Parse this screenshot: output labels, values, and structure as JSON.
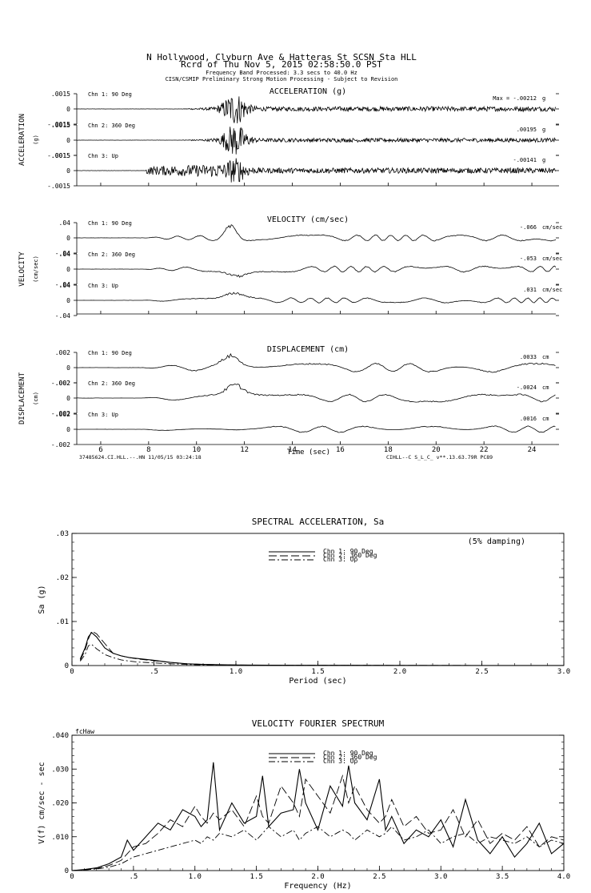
{
  "header": {
    "title": "N Hollywood, Clyburn Ave & Hatteras St    SCSN Sta HLL",
    "record": "Rcrd of Thu Nov  5, 2015 02:58:50.0 PST",
    "band": "Frequency Band Processed: 3.3 secs to 40.0 Hz",
    "notice": "CISN/CSMIP Preliminary Strong Motion Processing - Subject to Revision"
  },
  "timeseries": {
    "panels": [
      {
        "id": "acc",
        "title": "ACCELERATION (g)",
        "side_label": "ACCELERATION",
        "unit_label": "(g)",
        "ticks": [
          ".0015",
          "0",
          "-.0015"
        ],
        "unit": "g",
        "channels": [
          {
            "name": "Chn 1: 90 Deg",
            "max_label": "Max =  -.00212",
            "max_value": -0.00212
          },
          {
            "name": "Chn 2: 360 Deg",
            "max_label": ".00195",
            "max_value": 0.00195
          },
          {
            "name": "Chn 3: Up",
            "max_label": "-.00141",
            "max_value": -0.00141
          }
        ]
      },
      {
        "id": "vel",
        "title": "VELOCITY (cm/sec)",
        "side_label": "VELOCITY",
        "unit_label": "(cm/sec)",
        "ticks": [
          ".04",
          "0",
          "-.04"
        ],
        "unit": "cm/sec",
        "channels": [
          {
            "name": "Chn 1: 90 Deg",
            "max_label": "-.066",
            "max_value": -0.066
          },
          {
            "name": "Chn 2: 360 Deg",
            "max_label": "-.053",
            "max_value": -0.053
          },
          {
            "name": "Chn 3: Up",
            "max_label": ".031",
            "max_value": 0.031
          }
        ]
      },
      {
        "id": "dis",
        "title": "DISPLACEMENT (cm)",
        "side_label": "DISPLACEMENT",
        "unit_label": "(cm)",
        "ticks": [
          ".002",
          "0",
          "-.002"
        ],
        "unit": "cm",
        "channels": [
          {
            "name": "Chn 1: 90 Deg",
            "max_label": ".0033",
            "max_value": 0.0033
          },
          {
            "name": "Chn 2: 360 Deg",
            "max_label": "-.0024",
            "max_value": -0.0024
          },
          {
            "name": "Chn 3: Up",
            "max_label": ".0016",
            "max_value": 0.0016
          }
        ]
      }
    ],
    "x_ticks": [
      "6",
      "8",
      "10",
      "12",
      "14",
      "16",
      "18",
      "20",
      "22",
      "24"
    ],
    "xlim": [
      5.0,
      25.0
    ],
    "xlabel": "Time (sec)",
    "footer_left": "37485624.CI.HLL.--.HN 11/05/15 03:24:18",
    "footer_right": "CIHLL--C  S_L_C_  v**.13.63.79R PC89"
  },
  "chart_data": [
    {
      "type": "line",
      "title": "SPECTRAL ACCELERATION, Sa",
      "xlabel": "Period (sec)",
      "ylabel": "Sa (g)",
      "xlim": [
        0,
        3.0
      ],
      "ylim": [
        0,
        0.03
      ],
      "x_ticks": [
        "0",
        ".5",
        "1.0",
        "1.5",
        "2.0",
        "2.5",
        "3.0"
      ],
      "y_ticks": [
        "0",
        ".01",
        ".02",
        ".03"
      ],
      "annotation": "(5% damping)",
      "x": [
        0.05,
        0.08,
        0.1,
        0.12,
        0.15,
        0.2,
        0.25,
        0.3,
        0.35,
        0.4,
        0.5,
        0.6,
        0.7,
        0.8,
        1.0,
        1.2,
        1.5,
        2.0,
        2.5,
        3.0
      ],
      "series": [
        {
          "name": "Chn 1: 90 Deg",
          "dash": "solid",
          "values": [
            0.0015,
            0.004,
            0.0065,
            0.0075,
            0.0065,
            0.004,
            0.0028,
            0.0022,
            0.0018,
            0.0016,
            0.0012,
            0.0007,
            0.0004,
            0.00025,
            0.00012,
            8e-05,
            5e-05,
            3e-05,
            2e-05,
            1e-05
          ]
        },
        {
          "name": "Chn 2: 360 Deg",
          "dash": "long",
          "values": [
            0.0012,
            0.0035,
            0.006,
            0.0078,
            0.0072,
            0.005,
            0.0028,
            0.0022,
            0.0018,
            0.0015,
            0.0011,
            0.0007,
            0.0004,
            0.00025,
            0.00012,
            8e-05,
            5e-05,
            3e-05,
            2e-05,
            1e-05
          ]
        },
        {
          "name": "Chn 3: Up",
          "dash": "dashdot",
          "values": [
            0.001,
            0.0025,
            0.0045,
            0.0048,
            0.0038,
            0.0025,
            0.0018,
            0.0013,
            0.001,
            0.0008,
            0.0006,
            0.0004,
            0.00025,
            0.00015,
            8e-05,
            5e-05,
            3e-05,
            2e-05,
            1e-05,
            1e-05
          ]
        }
      ],
      "legend_position": "top-center"
    },
    {
      "type": "line",
      "title": "VELOCITY FOURIER SPECTRUM",
      "corner_label": "fcHaw",
      "xlabel": "Frequency (Hz)",
      "ylabel": "V(f)   cm/sec - sec",
      "xlim": [
        0,
        4.0
      ],
      "ylim": [
        0,
        0.04
      ],
      "x_ticks": [
        "0",
        ".5",
        "1.0",
        "1.5",
        "2.0",
        "2.5",
        "3.0",
        "3.5",
        "4.0"
      ],
      "y_ticks": [
        "0",
        ".010",
        ".020",
        ".030",
        ".040"
      ],
      "x": [
        0.0,
        0.1,
        0.2,
        0.3,
        0.4,
        0.45,
        0.5,
        0.6,
        0.7,
        0.8,
        0.9,
        1.0,
        1.05,
        1.1,
        1.15,
        1.2,
        1.3,
        1.4,
        1.5,
        1.55,
        1.6,
        1.7,
        1.8,
        1.85,
        1.9,
        2.0,
        2.1,
        2.2,
        2.25,
        2.3,
        2.4,
        2.5,
        2.55,
        2.6,
        2.7,
        2.8,
        2.9,
        3.0,
        3.1,
        3.2,
        3.3,
        3.4,
        3.5,
        3.6,
        3.7,
        3.8,
        3.9,
        4.0
      ],
      "series": [
        {
          "name": "Chn 1: 90 Deg",
          "dash": "solid",
          "values": [
            0,
            0.0003,
            0.0008,
            0.002,
            0.004,
            0.009,
            0.006,
            0.01,
            0.014,
            0.012,
            0.018,
            0.016,
            0.013,
            0.015,
            0.032,
            0.012,
            0.02,
            0.014,
            0.016,
            0.028,
            0.013,
            0.017,
            0.018,
            0.03,
            0.02,
            0.012,
            0.025,
            0.019,
            0.031,
            0.02,
            0.015,
            0.027,
            0.012,
            0.016,
            0.008,
            0.012,
            0.01,
            0.015,
            0.007,
            0.021,
            0.009,
            0.005,
            0.01,
            0.004,
            0.008,
            0.014,
            0.005,
            0.008
          ]
        },
        {
          "name": "Chn 2: 360 Deg",
          "dash": "long",
          "values": [
            0,
            0.0002,
            0.0006,
            0.0015,
            0.003,
            0.005,
            0.007,
            0.008,
            0.011,
            0.015,
            0.013,
            0.019,
            0.016,
            0.014,
            0.017,
            0.015,
            0.018,
            0.013,
            0.022,
            0.016,
            0.014,
            0.025,
            0.02,
            0.016,
            0.027,
            0.022,
            0.017,
            0.028,
            0.02,
            0.025,
            0.018,
            0.014,
            0.016,
            0.021,
            0.013,
            0.016,
            0.011,
            0.012,
            0.018,
            0.01,
            0.015,
            0.008,
            0.011,
            0.009,
            0.013,
            0.007,
            0.01,
            0.009
          ]
        },
        {
          "name": "Chn 3: Up",
          "dash": "dashdot",
          "values": [
            0,
            0.0002,
            0.0005,
            0.001,
            0.002,
            0.003,
            0.004,
            0.005,
            0.006,
            0.007,
            0.008,
            0.009,
            0.008,
            0.01,
            0.009,
            0.011,
            0.01,
            0.012,
            0.009,
            0.011,
            0.013,
            0.01,
            0.012,
            0.009,
            0.011,
            0.013,
            0.01,
            0.012,
            0.011,
            0.009,
            0.012,
            0.01,
            0.011,
            0.013,
            0.009,
            0.01,
            0.012,
            0.008,
            0.01,
            0.011,
            0.008,
            0.01,
            0.009,
            0.008,
            0.01,
            0.007,
            0.009,
            0.008
          ]
        }
      ],
      "legend_position": "top-center"
    }
  ]
}
